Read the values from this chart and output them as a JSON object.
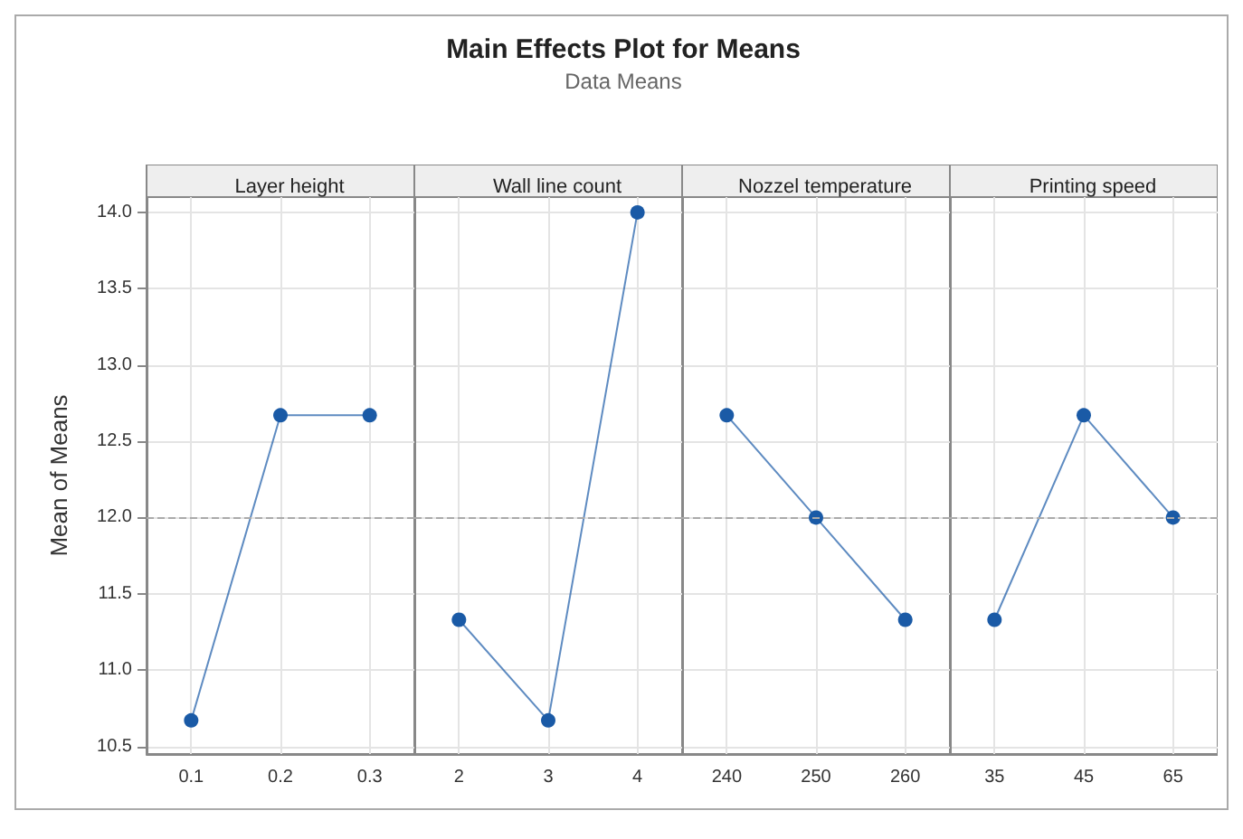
{
  "chart_data": [
    {
      "type": "other",
      "title": "Main Effects Plot for Means",
      "subtitle": "Data Means"
    },
    {
      "type": "line",
      "title": "Layer height",
      "ylabel": "Mean of Means",
      "categories": [
        "0.1",
        "0.2",
        "0.3"
      ],
      "series": [
        {
          "color": "#1a5aa6",
          "values": [
            10.67,
            12.67,
            12.67
          ]
        }
      ],
      "ylim": [
        10.45,
        14.1
      ],
      "yticks": [
        {
          "value": 10.5,
          "label": "10.5"
        },
        {
          "value": 11,
          "label": "11.0"
        },
        {
          "value": 11.5,
          "label": "11.5"
        },
        {
          "value": 12,
          "label": "12.0"
        },
        {
          "value": 12.5,
          "label": "12.5"
        },
        {
          "value": 13,
          "label": "13.0"
        },
        {
          "value": 13.5,
          "label": "13.5"
        },
        {
          "value": 14,
          "label": "14.0"
        }
      ],
      "ref_lines": [
        {
          "axis": "y",
          "value": 12,
          "color": "#aaaaaa",
          "line_style": "dashed"
        }
      ],
      "grid": true,
      "marker": "circle",
      "line_style": "solid"
    },
    {
      "type": "line",
      "title": "Wall line count",
      "categories": [
        "2",
        "3",
        "4"
      ],
      "series": [
        {
          "color": "#1a5aa6",
          "values": [
            11.33,
            10.67,
            14.0
          ]
        }
      ],
      "ylim": [
        10.45,
        14.1
      ],
      "yticks": [
        {
          "value": 10.5,
          "label": null
        },
        {
          "value": 11,
          "label": null
        },
        {
          "value": 11.5,
          "label": null
        },
        {
          "value": 12,
          "label": null
        },
        {
          "value": 12.5,
          "label": null
        },
        {
          "value": 13,
          "label": null
        },
        {
          "value": 13.5,
          "label": null
        },
        {
          "value": 14,
          "label": null
        }
      ],
      "tick_labels": "x",
      "ref_lines": [
        {
          "axis": "y",
          "value": 12,
          "color": "#aaaaaa",
          "line_style": "dashed"
        }
      ],
      "grid": true,
      "marker": "circle",
      "line_style": "solid"
    },
    {
      "type": "line",
      "title": "Nozzel temperature",
      "categories": [
        "240",
        "250",
        "260"
      ],
      "series": [
        {
          "color": "#1a5aa6",
          "values": [
            12.67,
            12.0,
            11.33
          ]
        }
      ],
      "ylim": [
        10.45,
        14.1
      ],
      "yticks": [
        {
          "value": 10.5,
          "label": null
        },
        {
          "value": 11,
          "label": null
        },
        {
          "value": 11.5,
          "label": null
        },
        {
          "value": 12,
          "label": null
        },
        {
          "value": 12.5,
          "label": null
        },
        {
          "value": 13,
          "label": null
        },
        {
          "value": 13.5,
          "label": null
        },
        {
          "value": 14,
          "label": null
        }
      ],
      "tick_labels": "x",
      "ref_lines": [
        {
          "axis": "y",
          "value": 12,
          "color": "#aaaaaa",
          "line_style": "dashed"
        }
      ],
      "grid": true,
      "marker": "circle",
      "line_style": "solid"
    },
    {
      "type": "line",
      "title": "Printing speed",
      "categories": [
        "35",
        "45",
        "65"
      ],
      "series": [
        {
          "color": "#1a5aa6",
          "values": [
            11.33,
            12.67,
            12.0
          ]
        }
      ],
      "ylim": [
        10.45,
        14.1
      ],
      "yticks": [
        {
          "value": 10.5,
          "label": null
        },
        {
          "value": 11,
          "label": null
        },
        {
          "value": 11.5,
          "label": null
        },
        {
          "value": 12,
          "label": null
        },
        {
          "value": 12.5,
          "label": null
        },
        {
          "value": 13,
          "label": null
        },
        {
          "value": 13.5,
          "label": null
        },
        {
          "value": 14,
          "label": null
        }
      ],
      "tick_labels": "x",
      "ref_lines": [
        {
          "axis": "y",
          "value": 12,
          "color": "#aaaaaa",
          "line_style": "dashed"
        }
      ],
      "grid": true,
      "marker": "circle",
      "line_style": "solid"
    }
  ]
}
